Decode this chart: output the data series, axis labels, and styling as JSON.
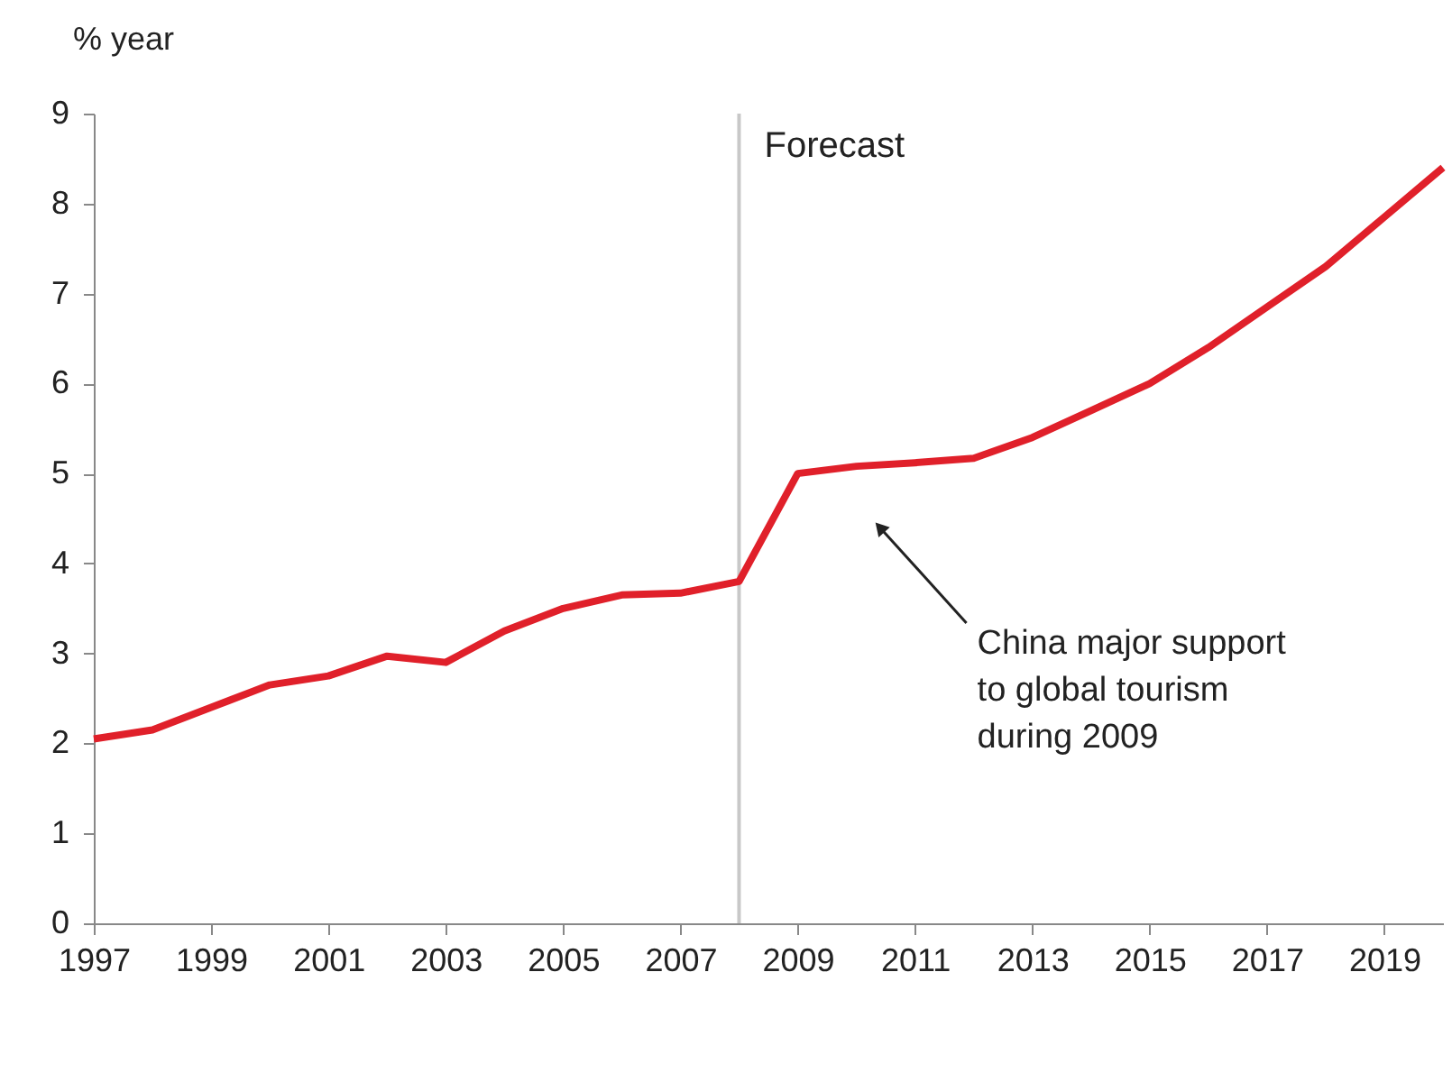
{
  "chart_data": {
    "type": "line",
    "ylabel": "% year",
    "x": [
      1997,
      1998,
      1999,
      2000,
      2001,
      2002,
      2003,
      2004,
      2005,
      2006,
      2007,
      2008,
      2009,
      2010,
      2011,
      2012,
      2013,
      2014,
      2015,
      2016,
      2017,
      2018,
      2019,
      2020
    ],
    "series": [
      {
        "color": "#e0202a",
        "values": [
          2.05,
          2.15,
          2.4,
          2.65,
          2.75,
          2.97,
          2.9,
          3.25,
          3.5,
          3.65,
          3.67,
          3.8,
          5.0,
          5.08,
          5.12,
          5.17,
          5.4,
          5.7,
          6.0,
          6.4,
          6.85,
          7.3,
          7.85,
          8.4
        ]
      }
    ],
    "xlim": [
      1997,
      2020
    ],
    "xticks": [
      1997,
      1999,
      2001,
      2003,
      2005,
      2007,
      2009,
      2011,
      2013,
      2015,
      2017,
      2019
    ],
    "ylim": [
      0,
      9
    ],
    "yticks": [
      0,
      1,
      2,
      3,
      4,
      5,
      6,
      7,
      8,
      9
    ],
    "ref_lines": [
      {
        "axis": "x",
        "value": 2008,
        "label": "Forecast",
        "color": "#c8c8c8"
      }
    ],
    "annotations": [
      {
        "text": "China major support\nto global tourism\nduring 2009",
        "x": 2010.4,
        "y": 4.4
      }
    ],
    "grid": false,
    "marker": "none",
    "line_style": "solid"
  }
}
